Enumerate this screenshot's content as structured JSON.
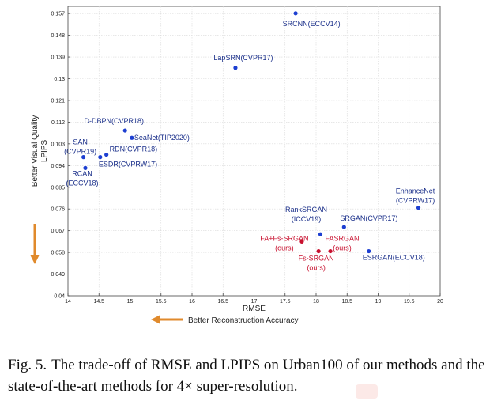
{
  "chart_data": {
    "type": "scatter",
    "xlabel": "RMSE",
    "ylabel": [
      "Better Visual Quality",
      "LPIPS"
    ],
    "xlim": [
      14,
      20
    ],
    "ylim": [
      0.04,
      0.16
    ],
    "x_ticks": [
      "14",
      "14.5",
      "15",
      "15.5",
      "16",
      "16.5",
      "17",
      "17.5",
      "18",
      "18.5",
      "19",
      "19.5",
      "20"
    ],
    "y_ticks": [
      "0.04",
      "0.049",
      "0.058",
      "0.067",
      "0.076",
      "0.085",
      "0.094",
      "0.103",
      "0.112",
      "0.121",
      "0.13",
      "0.139",
      "0.148",
      "0.157"
    ],
    "grid": true,
    "colors": {
      "existing": "#1d3fd1",
      "ours": "#c8102e",
      "arrow": "#e08a2c",
      "grid": "#d9d9d9"
    },
    "series": [
      {
        "group": "existing",
        "points": [
          {
            "label": [
              "SRCNN(ECCV14)"
            ],
            "x": 17.67,
            "y": 0.1571
          },
          {
            "label": [
              "LapSRN(CVPR17)"
            ],
            "x": 16.7,
            "y": 0.1345
          },
          {
            "label": [
              "D-DBPN(CVPR18)"
            ],
            "x": 14.92,
            "y": 0.1085
          },
          {
            "label": [
              "SeaNet(TIP2020)"
            ],
            "x": 15.03,
            "y": 0.1055
          },
          {
            "label": [
              "RDN(CVPR18)"
            ],
            "x": 14.62,
            "y": 0.0985
          },
          {
            "label": [
              "SAN",
              "(CVPR19)"
            ],
            "x": 14.25,
            "y": 0.0975
          },
          {
            "label": [
              "ESDR(CVPRW17)"
            ],
            "x": 14.52,
            "y": 0.0975
          },
          {
            "label": [
              "RCAN",
              "(ECCV18)"
            ],
            "x": 14.28,
            "y": 0.093
          },
          {
            "label": [
              "EnhanceNet",
              "(CVPRW17)"
            ],
            "x": 19.65,
            "y": 0.0765
          },
          {
            "label": [
              "RankSRGAN",
              "(ICCV19)"
            ],
            "x": 18.07,
            "y": 0.0655
          },
          {
            "label": [
              "SRGAN(CVPR17)"
            ],
            "x": 18.45,
            "y": 0.0685
          },
          {
            "label": [
              "ESRGAN(ECCV18)"
            ],
            "x": 18.85,
            "y": 0.0585
          }
        ]
      },
      {
        "group": "ours",
        "points": [
          {
            "label": [
              "FA+Fs-SRGAN",
              "(ours)"
            ],
            "x": 17.77,
            "y": 0.0625
          },
          {
            "label": [
              "Fs-SRGAN",
              "(ours)"
            ],
            "x": 18.04,
            "y": 0.0585
          },
          {
            "label": [
              "FASRGAN",
              "(ours)"
            ],
            "x": 18.23,
            "y": 0.0585
          }
        ]
      }
    ],
    "annotations": {
      "better_visual": "Better Visual Quality",
      "better_reconstruction": "Better Reconstruction Accuracy"
    }
  },
  "caption": {
    "prefix": "Fig. 5.",
    "text": "The trade-off of RMSE and LPIPS on Urban100 of our methods and the state-of-the-art methods for 4× super-resolution."
  }
}
